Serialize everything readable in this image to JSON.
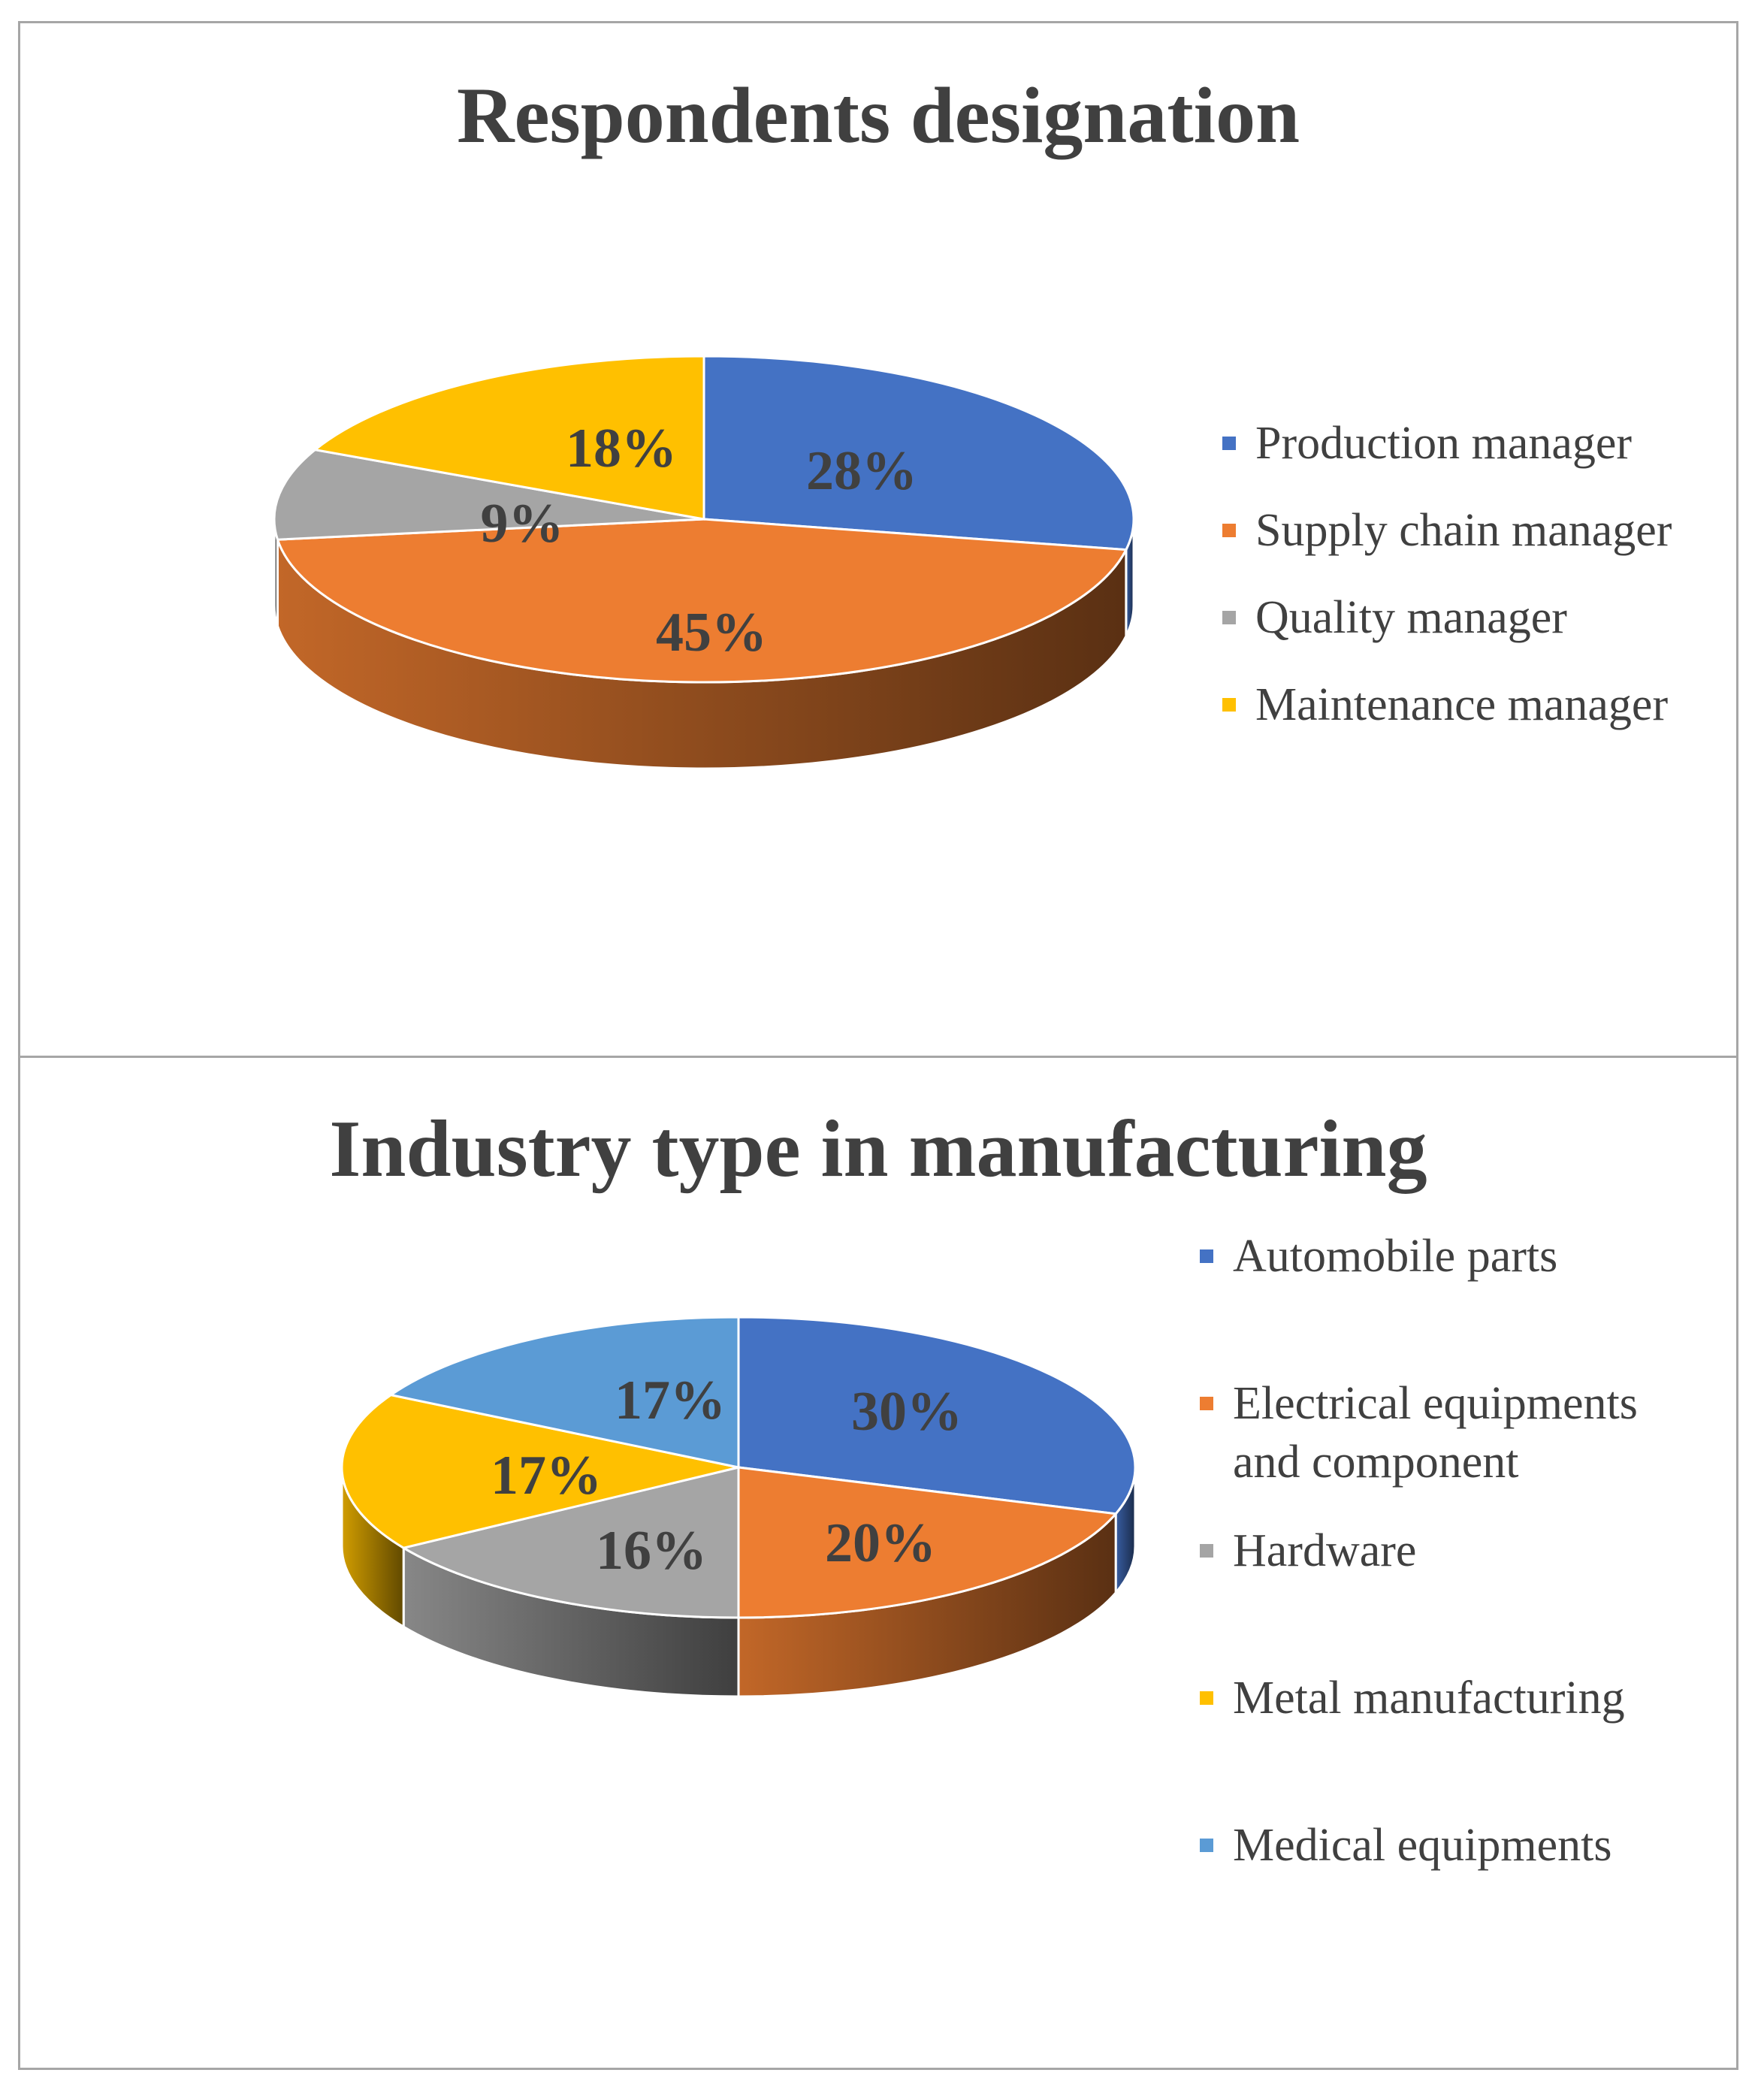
{
  "chart_data": [
    {
      "type": "pie",
      "title": "Respondents designation",
      "categories": [
        "Production manager",
        "Supply chain manager",
        "Quality manager",
        "Maintenance manager"
      ],
      "values": [
        28,
        45,
        9,
        18
      ],
      "labels": [
        "28%",
        "45%",
        "9%",
        "18%"
      ],
      "colors": [
        "#4472c4",
        "#ed7d31",
        "#a5a5a5",
        "#ffc000"
      ],
      "legend_position": "right"
    },
    {
      "type": "pie",
      "title": "Industry type in manufacturing",
      "categories": [
        "Automobile parts",
        "Electrical equipments and component",
        "Hardware",
        "Metal manufacturing",
        "Medical equipments"
      ],
      "legend_lines": [
        [
          "Automobile parts"
        ],
        [
          "Electrical equipments",
          "and component"
        ],
        [
          "Hardware"
        ],
        [
          "Metal manufacturing"
        ],
        [
          "Medical equipments"
        ]
      ],
      "values": [
        30,
        20,
        16,
        17,
        17
      ],
      "labels": [
        "30%",
        "20%",
        "16%",
        "17%",
        "17%"
      ],
      "colors": [
        "#4472c4",
        "#ed7d31",
        "#a5a5a5",
        "#ffc000",
        "#5b9bd5"
      ],
      "legend_position": "right"
    }
  ]
}
